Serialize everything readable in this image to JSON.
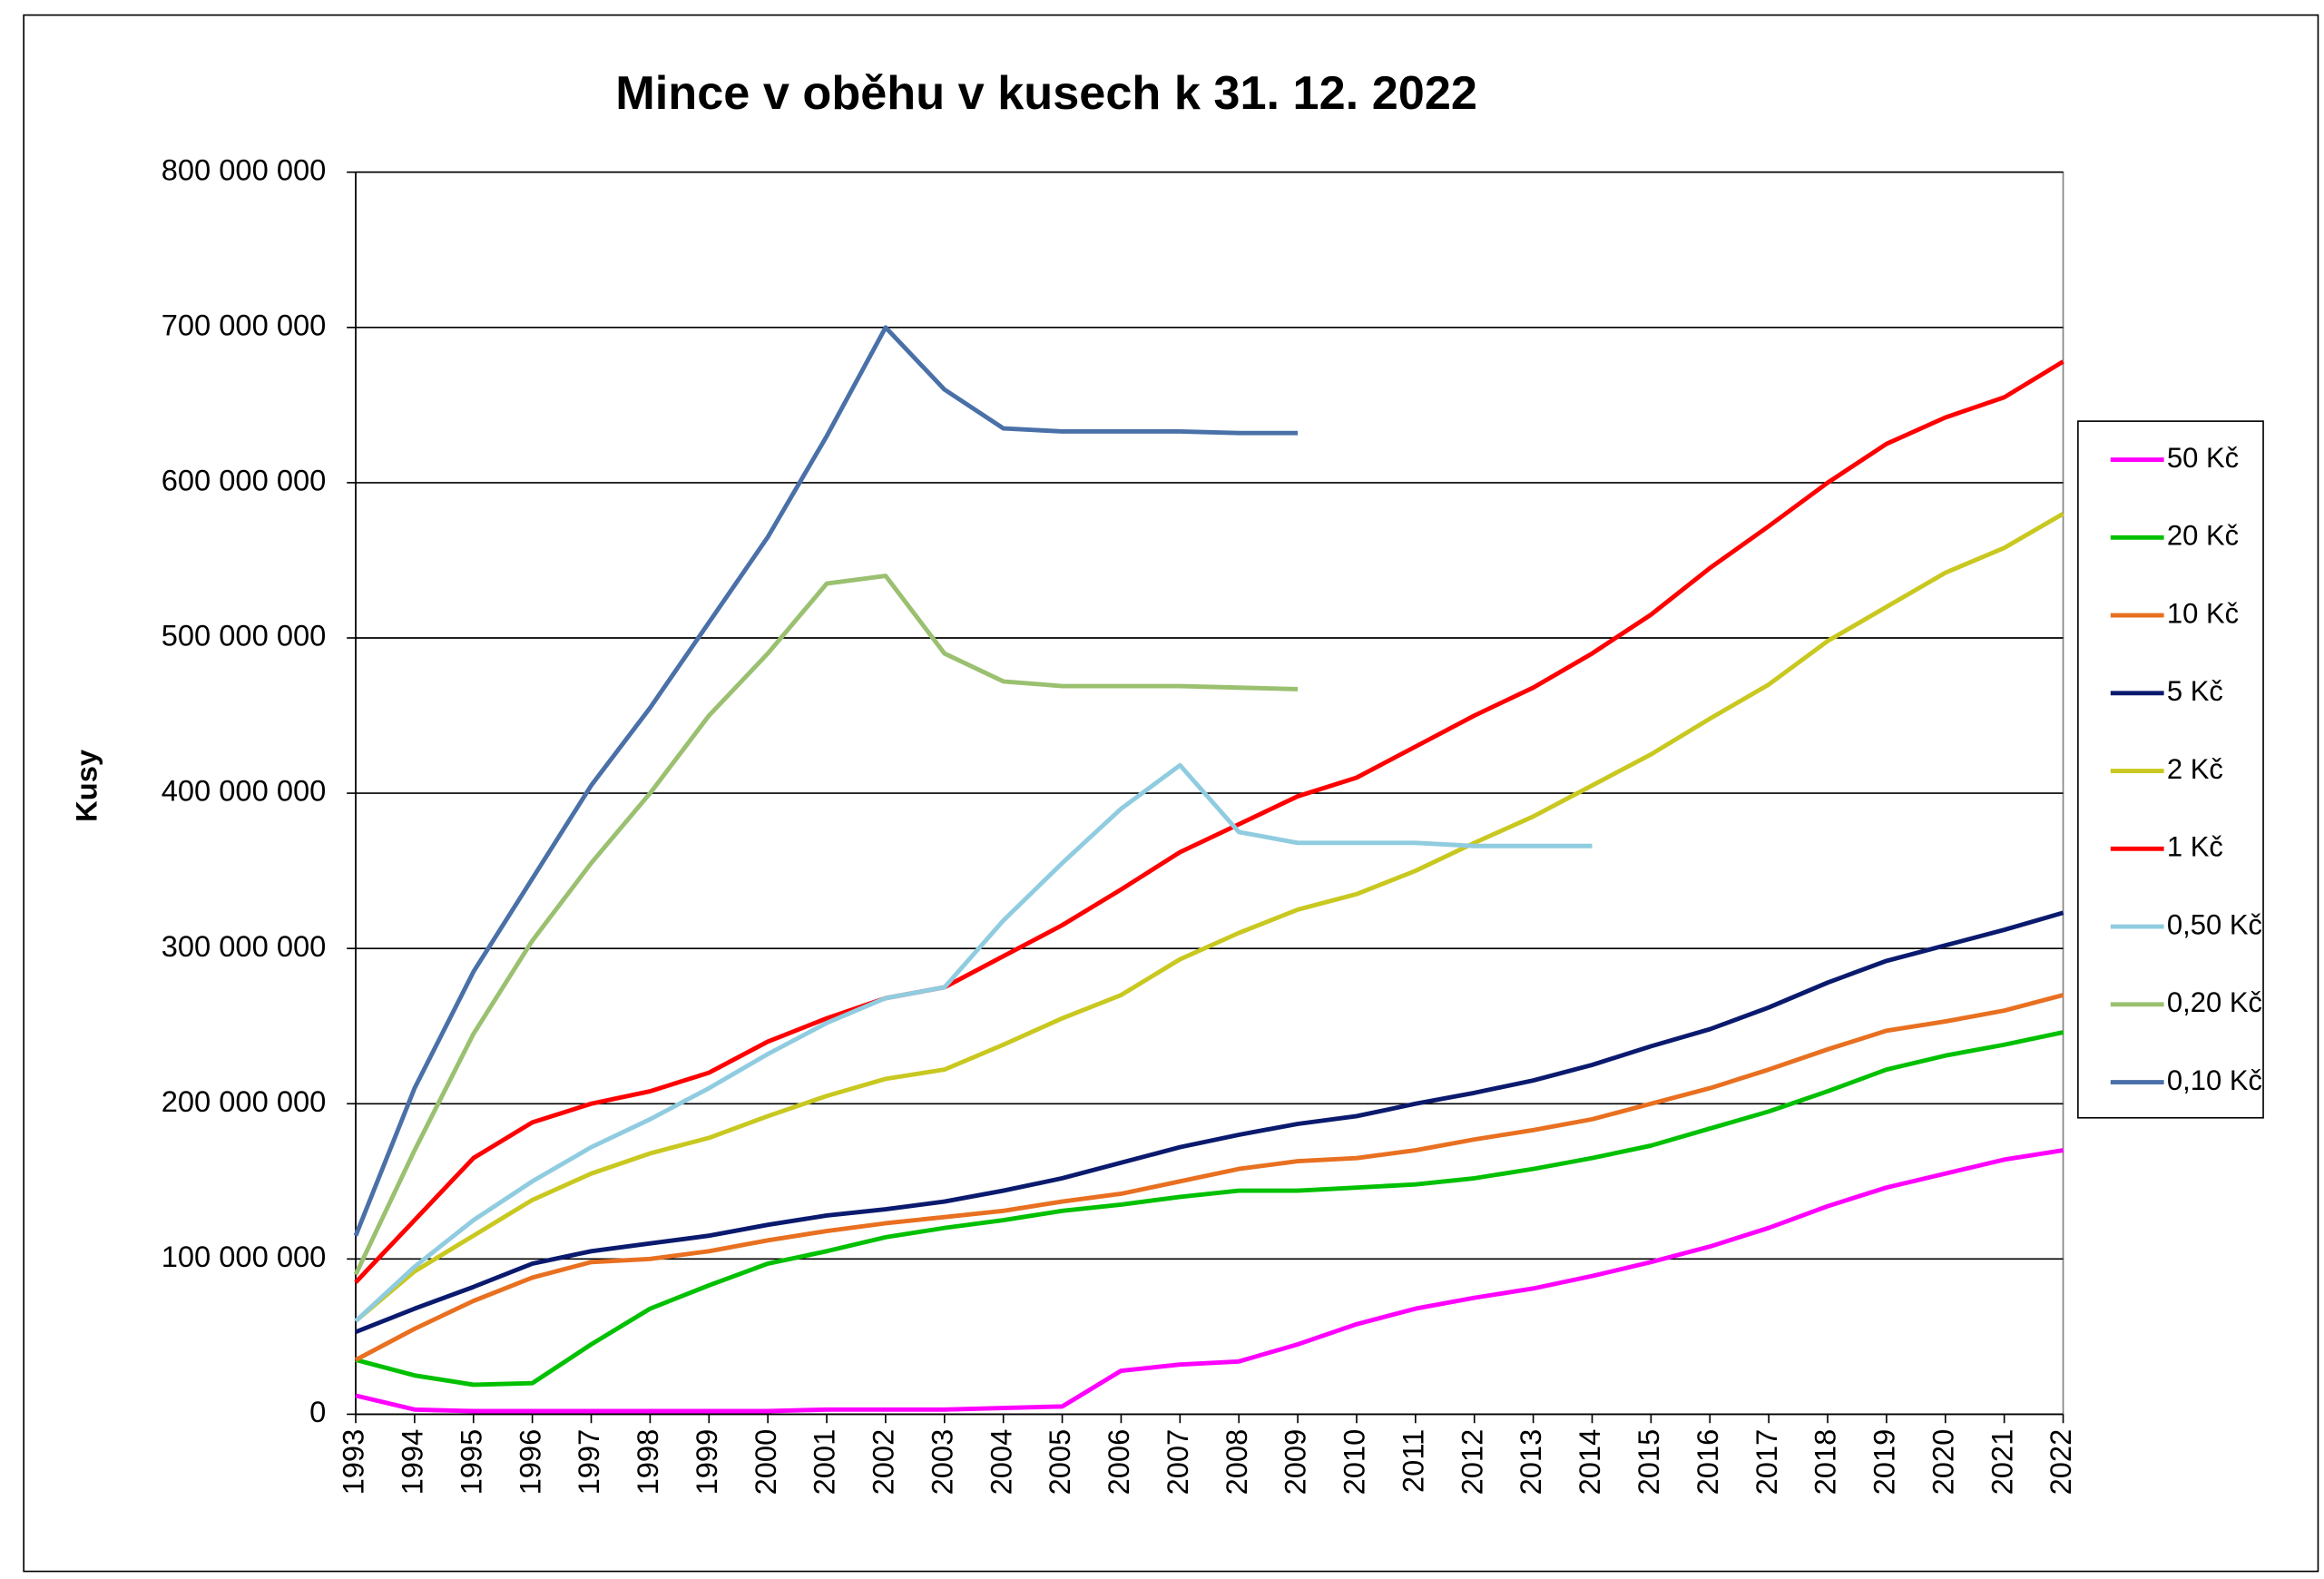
{
  "chart_data": {
    "type": "line",
    "title": "Mince v oběhu v kusech k 31. 12. 2022",
    "y_label": "Kusy",
    "x": [
      1993,
      1994,
      1995,
      1996,
      1997,
      1998,
      1999,
      2000,
      2001,
      2002,
      2003,
      2004,
      2005,
      2006,
      2007,
      2008,
      2009,
      2010,
      2011,
      2012,
      2013,
      2014,
      2015,
      2016,
      2017,
      2018,
      2019,
      2020,
      2021,
      2022
    ],
    "xlim": [
      1993,
      2022
    ],
    "xticks": [
      1993,
      1994,
      1995,
      1996,
      1997,
      1998,
      1999,
      2000,
      2001,
      2002,
      2003,
      2004,
      2005,
      2006,
      2007,
      2008,
      2009,
      2010,
      2011,
      2012,
      2013,
      2014,
      2015,
      2016,
      2017,
      2018,
      2019,
      2020,
      2021,
      2022
    ],
    "ylim": [
      0,
      800000000
    ],
    "yticks": [
      0,
      {
        "value": 100000000,
        "label": "100 000 000"
      },
      {
        "value": 200000000,
        "label": "200 000 000"
      },
      {
        "value": 300000000,
        "label": "300 000 000"
      },
      {
        "value": 400000000,
        "label": "400 000 000"
      },
      {
        "value": 500000000,
        "label": "500 000 000"
      },
      {
        "value": 600000000,
        "label": "600 000 000"
      },
      {
        "value": 700000000,
        "label": "700 000 000"
      },
      {
        "value": 800000000,
        "label": "800 000 000"
      }
    ],
    "grid": true,
    "legend": "right",
    "series": [
      {
        "name": "50 Kč",
        "color": "#ff00ff",
        "values": [
          12000000,
          3000000,
          2000000,
          2000000,
          2000000,
          2000000,
          2000000,
          2000000,
          3000000,
          3000000,
          3000000,
          4000000,
          5000000,
          28000000,
          32000000,
          34000000,
          45000000,
          58000000,
          68000000,
          75000000,
          81000000,
          89000000,
          98000000,
          108000000,
          120000000,
          134000000,
          146000000,
          155000000,
          164000000,
          170000000
        ]
      },
      {
        "name": "20 Kč",
        "color": "#00c000",
        "values": [
          35000000,
          25000000,
          19000000,
          20000000,
          45000000,
          68000000,
          83000000,
          97000000,
          105000000,
          114000000,
          120000000,
          125000000,
          131000000,
          135000000,
          140000000,
          144000000,
          144000000,
          146000000,
          148000000,
          152000000,
          158000000,
          165000000,
          173000000,
          184000000,
          195000000,
          208000000,
          222000000,
          231000000,
          238000000,
          246000000
        ]
      },
      {
        "name": "10 Kč",
        "color": "#e87020",
        "values": [
          35000000,
          55000000,
          73000000,
          88000000,
          98000000,
          100000000,
          105000000,
          112000000,
          118000000,
          123000000,
          127000000,
          131000000,
          137000000,
          142000000,
          150000000,
          158000000,
          163000000,
          165000000,
          170000000,
          177000000,
          183000000,
          190000000,
          200000000,
          210000000,
          222000000,
          235000000,
          247000000,
          253000000,
          260000000,
          270000000
        ]
      },
      {
        "name": "5 Kč",
        "color": "#0a1a6e",
        "values": [
          53000000,
          68000000,
          82000000,
          97000000,
          105000000,
          110000000,
          115000000,
          122000000,
          128000000,
          132000000,
          137000000,
          144000000,
          152000000,
          162000000,
          172000000,
          180000000,
          187000000,
          192000000,
          200000000,
          207000000,
          215000000,
          225000000,
          237000000,
          248000000,
          262000000,
          278000000,
          292000000,
          302000000,
          312000000,
          323000000
        ]
      },
      {
        "name": "2 Kč",
        "color": "#c8c820",
        "values": [
          60000000,
          92000000,
          115000000,
          138000000,
          155000000,
          168000000,
          178000000,
          192000000,
          205000000,
          216000000,
          222000000,
          238000000,
          255000000,
          270000000,
          293000000,
          310000000,
          325000000,
          335000000,
          350000000,
          368000000,
          385000000,
          405000000,
          425000000,
          448000000,
          470000000,
          498000000,
          520000000,
          542000000,
          558000000,
          580000000
        ]
      },
      {
        "name": "1 Kč",
        "color": "#ff0000",
        "values": [
          85000000,
          125000000,
          165000000,
          188000000,
          200000000,
          208000000,
          220000000,
          240000000,
          255000000,
          268000000,
          275000000,
          295000000,
          315000000,
          338000000,
          362000000,
          380000000,
          398000000,
          410000000,
          430000000,
          450000000,
          468000000,
          490000000,
          515000000,
          545000000,
          572000000,
          600000000,
          625000000,
          642000000,
          655000000,
          678000000
        ]
      },
      {
        "name": "0,50 Kč",
        "color": "#90cce0",
        "values": [
          60000000,
          95000000,
          125000000,
          150000000,
          172000000,
          190000000,
          210000000,
          232000000,
          252000000,
          268000000,
          275000000,
          318000000,
          355000000,
          390000000,
          418000000,
          375000000,
          368000000,
          368000000,
          368000000,
          366000000,
          366000000,
          366000000,
          null,
          null,
          null,
          null,
          null,
          null,
          null,
          null
        ]
      },
      {
        "name": "0,20 Kč",
        "color": "#9ac070",
        "values": [
          90000000,
          170000000,
          245000000,
          305000000,
          355000000,
          400000000,
          450000000,
          490000000,
          535000000,
          540000000,
          490000000,
          472000000,
          469000000,
          469000000,
          469000000,
          468000000,
          467000000,
          null,
          null,
          null,
          null,
          null,
          null,
          null,
          null,
          null,
          null,
          null,
          null,
          null
        ]
      },
      {
        "name": "0,10 Kč",
        "color": "#4a70a8",
        "values": [
          115000000,
          210000000,
          285000000,
          345000000,
          405000000,
          455000000,
          510000000,
          565000000,
          630000000,
          700000000,
          660000000,
          635000000,
          633000000,
          633000000,
          633000000,
          632000000,
          632000000,
          null,
          null,
          null,
          null,
          null,
          null,
          null,
          null,
          null,
          null,
          null,
          null,
          null
        ]
      }
    ]
  }
}
